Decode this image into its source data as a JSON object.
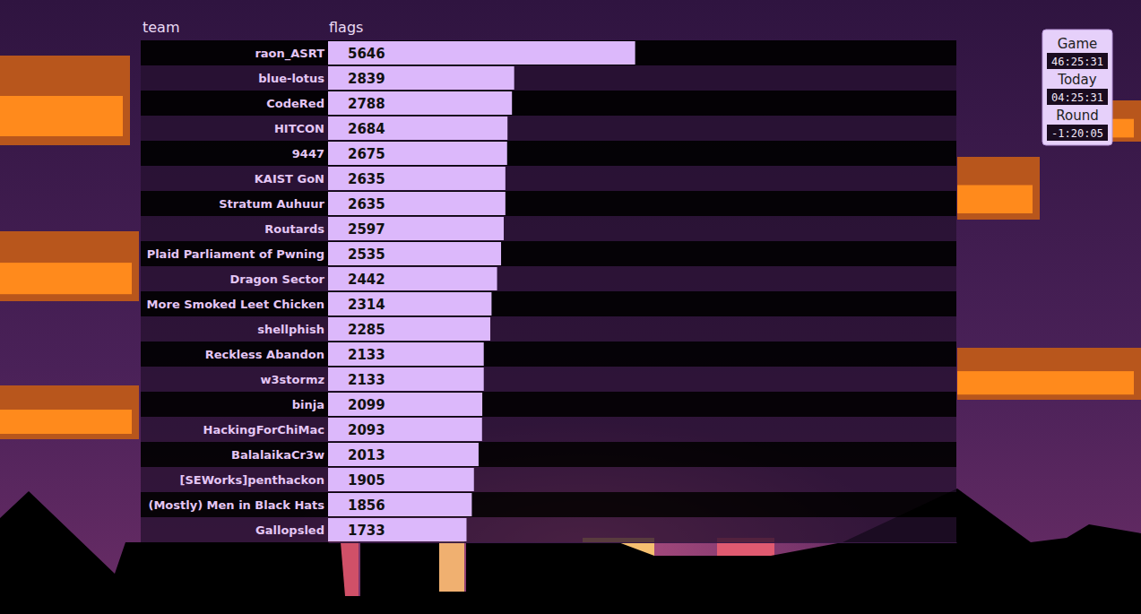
{
  "chart_data": {
    "type": "bar",
    "orientation": "horizontal",
    "ylabel": "team",
    "xlabel": "flags",
    "categories": [
      "raon_ASRT",
      "blue-lotus",
      "CodeRed",
      "HITCON",
      "9447",
      "KAIST GoN",
      "Stratum Auhuur",
      "Routards",
      "Plaid Parliament of Pwning",
      "Dragon Sector",
      "More Smoked Leet Chicken",
      "shellphish",
      "Reckless Abandon",
      "w3stormz",
      "binja",
      "HackingForChiMac",
      "BalalaikaCr3w",
      "[SEWorks]penthackon",
      "(Mostly) Men in Black Hats",
      "Gallopsled"
    ],
    "values": [
      5646,
      2839,
      2788,
      2684,
      2675,
      2635,
      2635,
      2597,
      2535,
      2442,
      2314,
      2285,
      2133,
      2133,
      2099,
      2093,
      2013,
      1905,
      1856,
      1733
    ],
    "color": "#dcb8fb",
    "xlim": [
      -1480,
      13100
    ],
    "xticks": [],
    "tick_labels": false,
    "data_labels": true,
    "grid": false
  },
  "clock": [
    {
      "label": "Game",
      "value": "46:25:31"
    },
    {
      "label": "Today",
      "value": "04:25:31"
    },
    {
      "label": "Round",
      "value": "-1:20:05"
    }
  ]
}
